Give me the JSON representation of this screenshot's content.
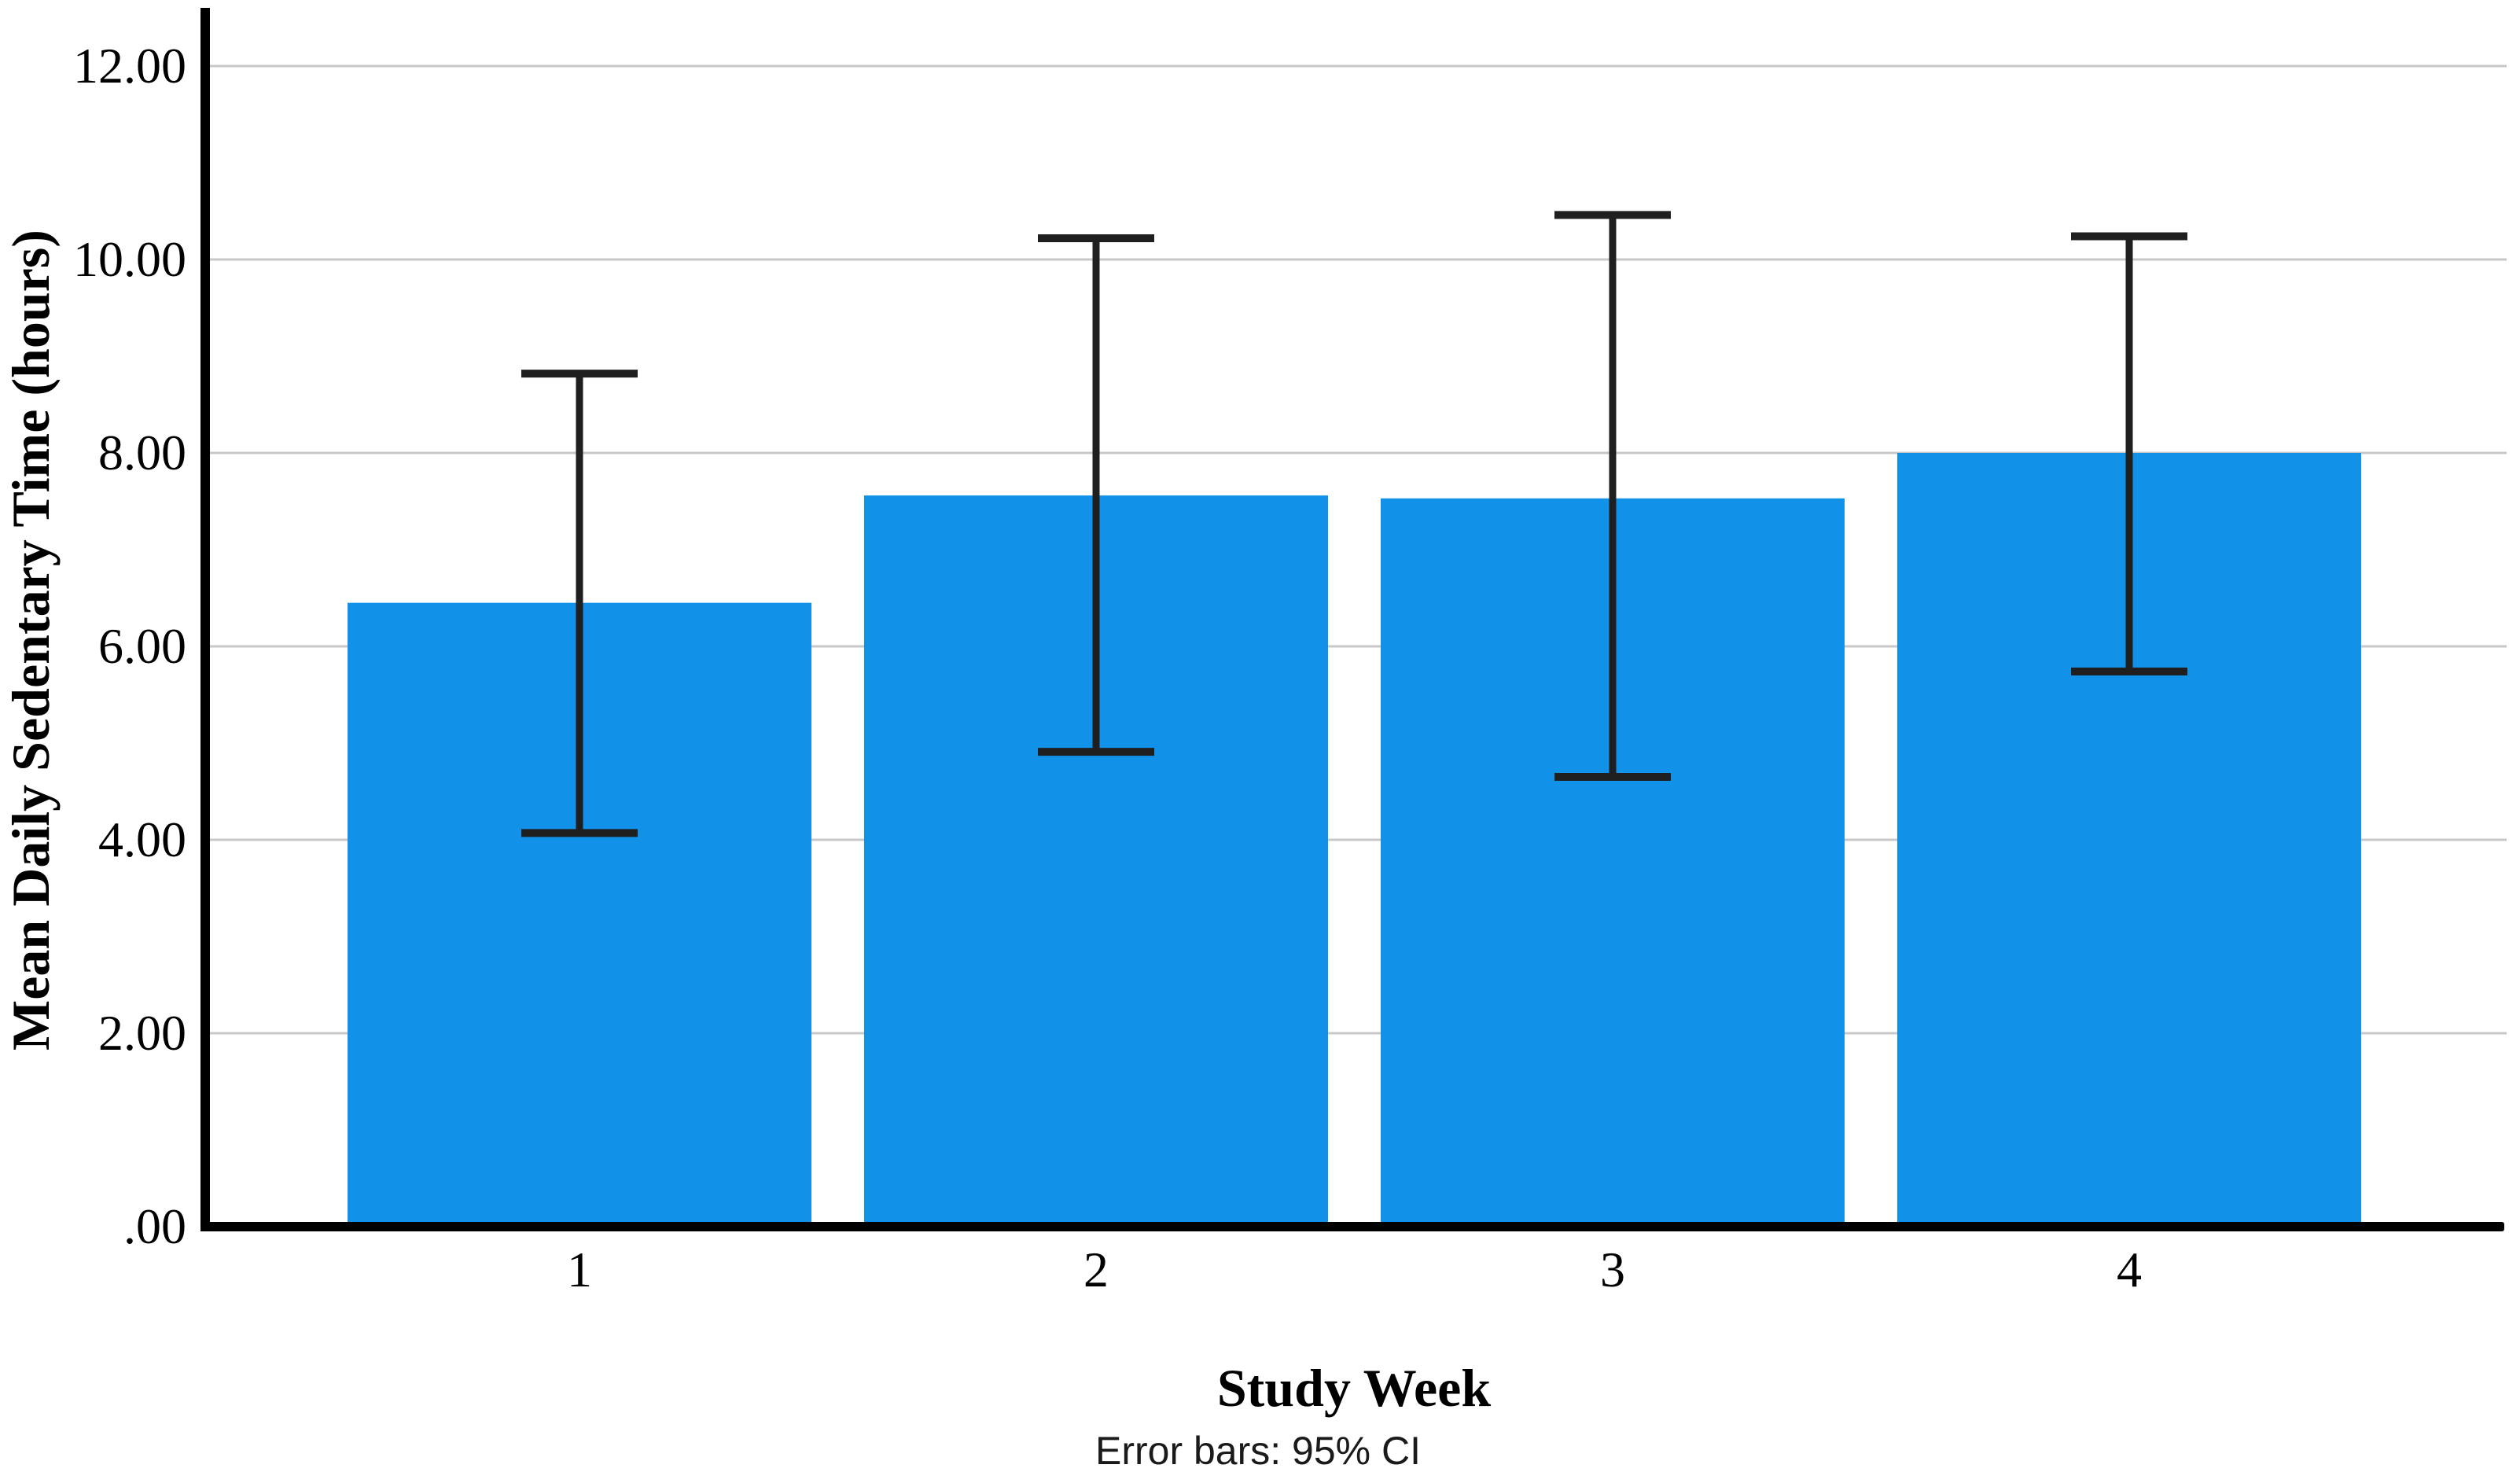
{
  "figure": {
    "caption": "Error bars: 95% CI"
  },
  "chart_data": {
    "type": "bar",
    "title": "",
    "xlabel": "Study Week",
    "ylabel": "Mean Daily Sedentary Time (hours)",
    "categories": [
      "1",
      "2",
      "3",
      "4"
    ],
    "series": [
      {
        "name": "Mean Daily Sedentary Time (hours)",
        "values": [
          6.45,
          7.56,
          7.53,
          8.0
        ]
      }
    ],
    "error_bars": {
      "label": "95% CI",
      "lower": [
        4.07,
        4.91,
        4.65,
        5.74
      ],
      "upper": [
        8.82,
        10.22,
        10.46,
        10.24
      ]
    },
    "y_ticks": {
      "values": [
        0,
        2,
        4,
        6,
        8,
        10,
        12
      ],
      "labels": [
        ".00",
        "2.00",
        "4.00",
        "6.00",
        "8.00",
        "10.00",
        "12.00"
      ]
    },
    "ylim": [
      0,
      12.6
    ],
    "grid": "horizontal",
    "legend": "none",
    "colors": {
      "bar": "#1191E8",
      "gridline": "#C8C8C8",
      "axis": "#000000",
      "error_bar": "#1F1F1F",
      "text": "#000000"
    }
  }
}
